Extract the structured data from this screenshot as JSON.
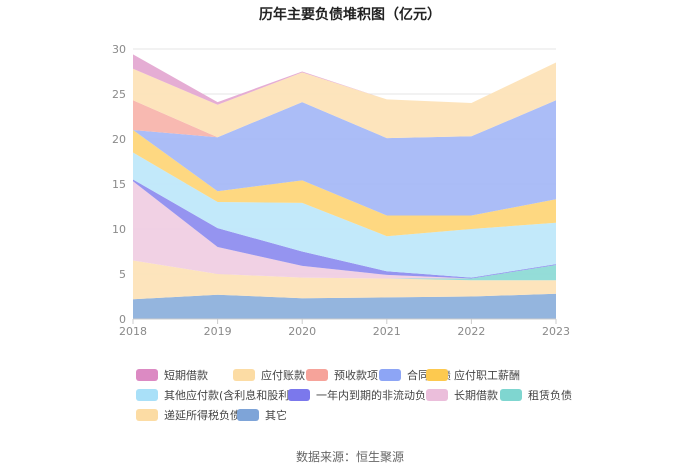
{
  "chart_data": {
    "type": "area",
    "title": "历年主要负债堆积图（亿元）",
    "x": [
      "2018",
      "2019",
      "2020",
      "2021",
      "2022",
      "2023"
    ],
    "ylim": [
      0,
      30
    ],
    "yticks": [
      0,
      5,
      10,
      15,
      20,
      25,
      30
    ],
    "series": [
      {
        "name": "其它",
        "color": "#8eb1dc",
        "values": [
          2.2,
          2.7,
          2.3,
          2.4,
          2.5,
          2.8
        ]
      },
      {
        "name": "递延所得税负债",
        "color": "#fde3b8",
        "values": [
          4.3,
          2.3,
          2.3,
          2.1,
          1.8,
          1.5
        ]
      },
      {
        "name": "租赁负债",
        "color": "#8edbd6",
        "values": [
          0,
          0,
          0,
          0,
          0.2,
          1.7
        ]
      },
      {
        "name": "长期借款",
        "color": "#f0cfe3",
        "values": [
          8.8,
          3.0,
          1.3,
          0.4,
          0,
          0
        ]
      },
      {
        "name": "一年内到期的非流动负债",
        "color": "#8f8eef",
        "values": [
          0.2,
          2.1,
          1.6,
          0.4,
          0.1,
          0.1
        ]
      },
      {
        "name": "其他应付款(含利息和股利)",
        "color": "#bfe8fa",
        "values": [
          3.0,
          2.9,
          5.4,
          3.9,
          5.4,
          4.6
        ]
      },
      {
        "name": "应付职工薪酬",
        "color": "#fed67a",
        "values": [
          2.5,
          1.2,
          2.5,
          2.3,
          1.5,
          2.6
        ]
      },
      {
        "name": "合同负债",
        "color": "#a7b9f7",
        "values": [
          0,
          6.0,
          8.7,
          8.6,
          8.8,
          11.0
        ]
      },
      {
        "name": "预收款项",
        "color": "#f8b5ad",
        "values": [
          3.3,
          0,
          0,
          0,
          0,
          0
        ]
      },
      {
        "name": "应付账款",
        "color": "#fde3b8",
        "values": [
          3.5,
          3.6,
          3.3,
          4.3,
          3.7,
          4.2
        ]
      },
      {
        "name": "短期借款",
        "color": "#e4a9d2",
        "values": [
          1.6,
          0.3,
          0.1,
          0,
          0,
          0
        ]
      }
    ],
    "legend": [
      {
        "name": "短期借款",
        "color": "#dc8ac3"
      },
      {
        "name": "应付账款",
        "color": "#fcdca4"
      },
      {
        "name": "预收款项",
        "color": "#f6a39a"
      },
      {
        "name": "合同负债",
        "color": "#8da5f5"
      },
      {
        "name": "应付职工薪酬",
        "color": "#fdc94f"
      },
      {
        "name": "其他应付款(含利息和股利)",
        "color": "#a9e0f8"
      },
      {
        "name": "一年内到期的非流动负债",
        "color": "#7b78ec"
      },
      {
        "name": "长期借款",
        "color": "#ebbedb"
      },
      {
        "name": "租赁负债",
        "color": "#7fd6d0"
      },
      {
        "name": "递延所得税负债",
        "color": "#fcdca4"
      },
      {
        "name": "其它",
        "color": "#7ea4d8"
      }
    ]
  },
  "source": "数据来源：恒生聚源"
}
